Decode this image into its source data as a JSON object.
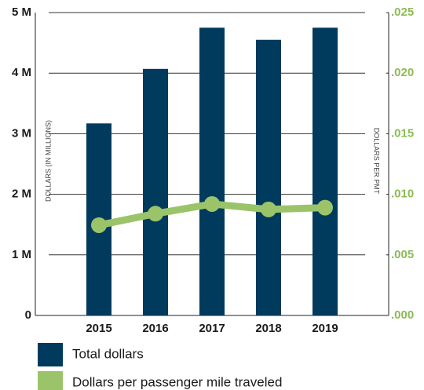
{
  "chart_data": {
    "type": "bar",
    "categories": [
      "2015",
      "2016",
      "2017",
      "2018",
      "2019"
    ],
    "series": [
      {
        "name": "Total dollars",
        "color": "#003a5c",
        "values": [
          3.17,
          4.07,
          4.75,
          4.55,
          4.75
        ]
      },
      {
        "name": "Dollars per passenger mile traveled",
        "color": "#9bc46a",
        "type": "line",
        "axis": "y2",
        "values": [
          0.00745,
          0.0084,
          0.0092,
          0.00875,
          0.0089
        ]
      }
    ],
    "ylabel": "DOLLARS (IN MILLIONS)",
    "y2label": "DOLLARS PER PMT",
    "ylim": [
      0,
      5
    ],
    "yticks": [
      0,
      {
        "value": 1,
        "label": "1 M"
      },
      {
        "value": 2,
        "label": "2 M"
      },
      {
        "value": 3,
        "label": "3 M"
      },
      {
        "value": 4,
        "label": "4 M"
      },
      {
        "value": 5,
        "label": "5 M"
      }
    ],
    "y2lim": [
      0,
      0.025
    ],
    "y2ticks": [
      {
        "value": 0,
        "label": ".000"
      },
      {
        "value": 0.005,
        "label": ".005"
      },
      {
        "value": 0.01,
        "label": ".010"
      },
      {
        "value": 0.015,
        "label": ".015"
      },
      {
        "value": 0.02,
        "label": ".020"
      },
      {
        "value": 0.025,
        "label": ".025"
      }
    ],
    "grid": true
  }
}
